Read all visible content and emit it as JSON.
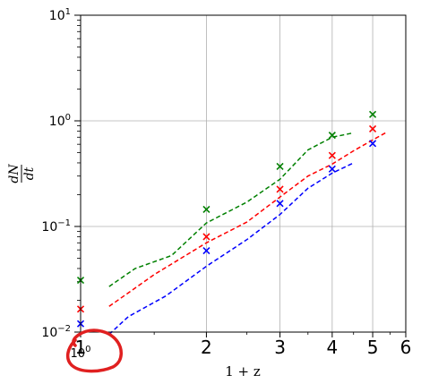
{
  "chart_data": {
    "type": "scatter",
    "title": "",
    "xlabel": "1 + z",
    "ylabel": "dN/dt",
    "x_scale": "log",
    "y_scale": "log",
    "xlim": [
      1,
      6
    ],
    "ylim": [
      0.01,
      10
    ],
    "grid": true,
    "x_major_ticks": [
      {
        "value": 1,
        "label": "1"
      },
      {
        "value": 2,
        "label": "2"
      },
      {
        "value": 3,
        "label": "3"
      },
      {
        "value": 4,
        "label": "4"
      },
      {
        "value": 5,
        "label": "5"
      },
      {
        "value": 6,
        "label": "6"
      }
    ],
    "x_offset_label": "10⁰",
    "y_major_ticks": [
      {
        "value": 0.01,
        "label": "10⁻²"
      },
      {
        "value": 0.1,
        "label": "10⁻¹"
      },
      {
        "value": 1,
        "label": "10⁰"
      },
      {
        "value": 10,
        "label": "10¹"
      }
    ],
    "series": [
      {
        "color": "#008000",
        "points": {
          "x": [
            1.0,
            2.0,
            3.0,
            4.0,
            5.0
          ],
          "y": [
            0.031,
            0.145,
            0.37,
            0.73,
            1.15
          ]
        },
        "model": {
          "x": [
            1.17,
            1.35,
            1.65,
            2.0,
            2.5,
            3.0,
            3.5,
            4.0,
            4.5
          ],
          "y": [
            0.027,
            0.04,
            0.053,
            0.108,
            0.17,
            0.28,
            0.53,
            0.7,
            0.77
          ]
        }
      },
      {
        "color": "#ff0000",
        "points": {
          "x": [
            1.0,
            2.0,
            3.0,
            4.0,
            5.0
          ],
          "y": [
            0.0165,
            0.08,
            0.225,
            0.47,
            0.84
          ]
        },
        "model": {
          "x": [
            1.17,
            1.5,
            2.0,
            2.5,
            3.0,
            3.5,
            4.0,
            4.5,
            5.0,
            5.4
          ],
          "y": [
            0.0175,
            0.035,
            0.07,
            0.11,
            0.19,
            0.3,
            0.39,
            0.52,
            0.66,
            0.78
          ]
        }
      },
      {
        "color": "#0000ff",
        "points": {
          "x": [
            1.0,
            2.0,
            3.0,
            4.0,
            5.0
          ],
          "y": [
            0.012,
            0.059,
            0.165,
            0.35,
            0.61
          ]
        },
        "model": {
          "x": [
            1.17,
            1.3,
            1.6,
            2.0,
            2.5,
            3.0,
            3.5,
            4.0,
            4.5
          ],
          "y": [
            0.0095,
            0.014,
            0.022,
            0.042,
            0.075,
            0.13,
            0.23,
            0.32,
            0.4
          ]
        }
      }
    ],
    "annotations": [
      {
        "type": "hand-drawn-circle",
        "color": "#e02020",
        "around": "x tick 1 / 10⁰ label"
      }
    ]
  }
}
